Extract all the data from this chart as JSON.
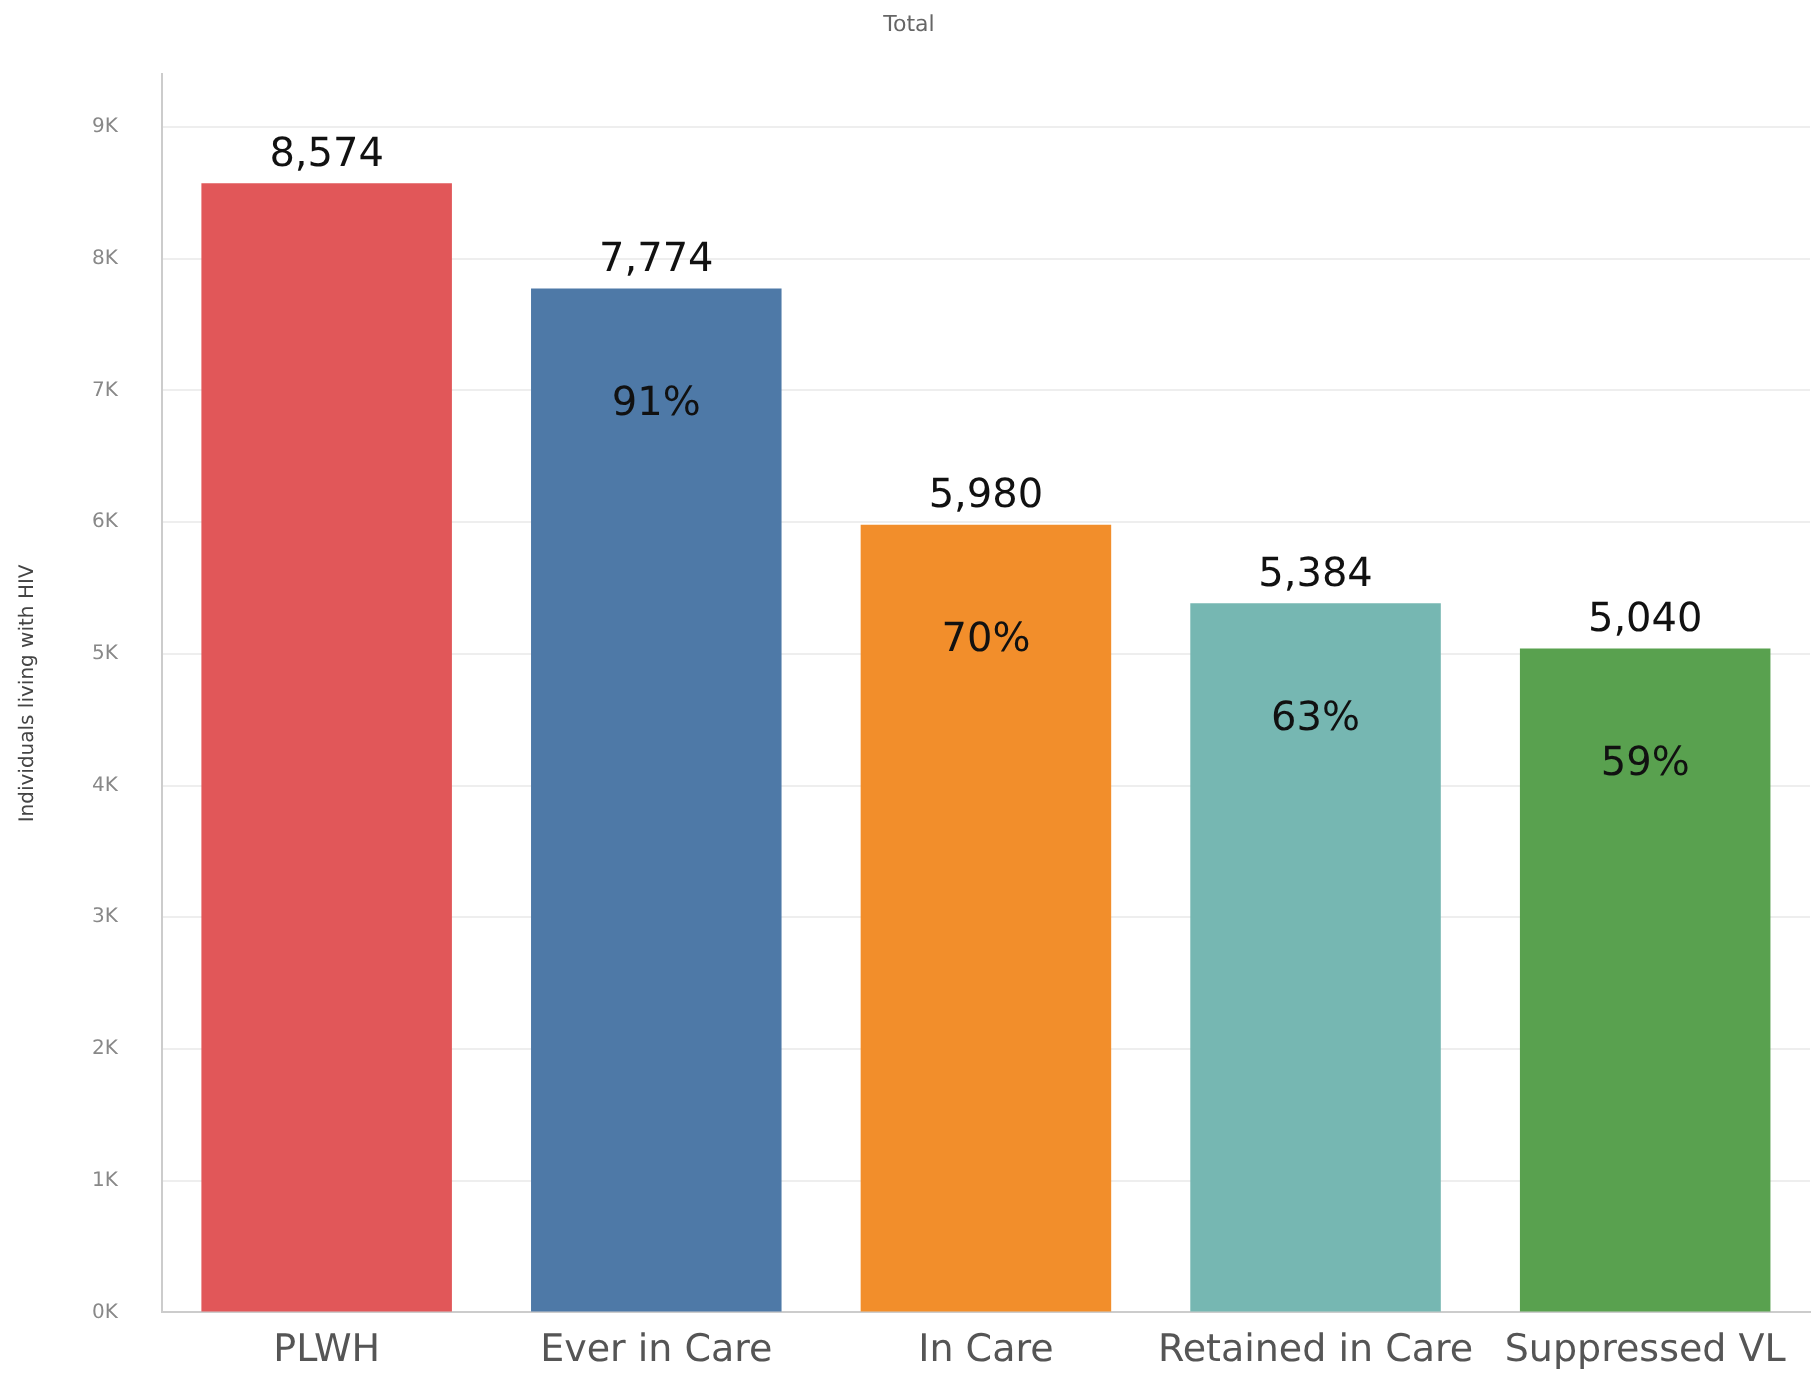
{
  "chart_data": {
    "type": "bar",
    "title": "Total",
    "ylabel": "Individuals living with HIV",
    "categories": [
      "PLWH",
      "Ever in Care",
      "In Care",
      "Retained in Care",
      "Suppressed VL"
    ],
    "values": [
      8574,
      7774,
      5980,
      5384,
      5040
    ],
    "colors": [
      "#e15759",
      "#4e79a7",
      "#f28e2b",
      "#76b7b2",
      "#59a14f"
    ],
    "ylim": [
      0,
      9400
    ],
    "yticks": [
      {
        "value": 0,
        "label": "0K"
      },
      {
        "value": 1000,
        "label": "1K"
      },
      {
        "value": 2000,
        "label": "2K"
      },
      {
        "value": 3000,
        "label": "3K"
      },
      {
        "value": 4000,
        "label": "4K"
      },
      {
        "value": 5000,
        "label": "5K"
      },
      {
        "value": 6000,
        "label": "6K"
      },
      {
        "value": 7000,
        "label": "7K"
      },
      {
        "value": 8000,
        "label": "8K"
      },
      {
        "value": 9000,
        "label": "9K"
      }
    ],
    "grid": "y",
    "value_labels": [
      "8,574",
      "7,774",
      "5,980",
      "5,384",
      "5,040"
    ],
    "legend": false,
    "annotations": [
      "91%",
      "70%",
      "63%",
      "59%"
    ]
  }
}
